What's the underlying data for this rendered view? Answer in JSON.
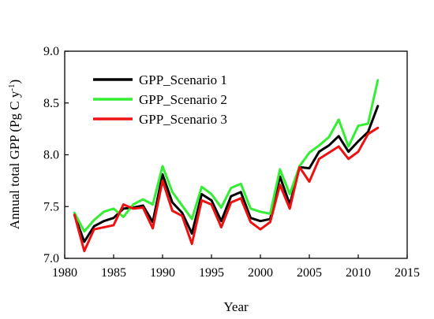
{
  "chart_data": {
    "type": "line",
    "xlabel": "Year",
    "ylabel": "Annual total GPP (Pg C y",
    "ylabel_sup": "-1",
    "ylabel_close": ")",
    "xlim": [
      1980,
      2015
    ],
    "ylim": [
      7.0,
      9.0
    ],
    "xticks": [
      1980,
      1985,
      1990,
      1995,
      2000,
      2005,
      2010,
      2015
    ],
    "xtick_labels": [
      "1980",
      "1985",
      "1990",
      "1995",
      "2000",
      "2005",
      "2010",
      "2015"
    ],
    "yticks": [
      7.0,
      7.5,
      8.0,
      8.5,
      9.0
    ],
    "ytick_labels": [
      "7.0",
      "7.5",
      "8.0",
      "8.5",
      "9.0"
    ],
    "grid": false,
    "legend_position": "top-left",
    "x": [
      1981,
      1982,
      1983,
      1984,
      1985,
      1986,
      1987,
      1988,
      1989,
      1990,
      1991,
      1992,
      1993,
      1994,
      1995,
      1996,
      1997,
      1998,
      1999,
      2000,
      2001,
      2002,
      2003,
      2004,
      2005,
      2006,
      2007,
      2008,
      2009,
      2010,
      2011,
      2012
    ],
    "series": [
      {
        "name": "GPP_Scenario 1",
        "color": "#000000",
        "values": [
          7.42,
          7.16,
          7.31,
          7.36,
          7.39,
          7.48,
          7.49,
          7.51,
          7.35,
          7.81,
          7.54,
          7.44,
          7.24,
          7.62,
          7.56,
          7.36,
          7.6,
          7.64,
          7.39,
          7.36,
          7.38,
          7.79,
          7.52,
          7.88,
          7.87,
          8.03,
          8.09,
          8.18,
          8.03,
          8.13,
          8.22,
          8.47
        ]
      },
      {
        "name": "GPP_Scenario 2",
        "color": "#33ee33",
        "values": [
          7.44,
          7.26,
          7.37,
          7.45,
          7.48,
          7.4,
          7.52,
          7.57,
          7.52,
          7.89,
          7.64,
          7.51,
          7.38,
          7.69,
          7.62,
          7.49,
          7.68,
          7.72,
          7.48,
          7.45,
          7.43,
          7.86,
          7.62,
          7.89,
          8.02,
          8.09,
          8.17,
          8.34,
          8.08,
          8.28,
          8.3,
          8.72
        ]
      },
      {
        "name": "GPP_Scenario 3",
        "color": "#ee1111",
        "values": [
          7.42,
          7.07,
          7.28,
          7.3,
          7.32,
          7.52,
          7.48,
          7.49,
          7.29,
          7.75,
          7.46,
          7.41,
          7.14,
          7.56,
          7.52,
          7.3,
          7.54,
          7.58,
          7.35,
          7.28,
          7.35,
          7.71,
          7.48,
          7.88,
          7.74,
          7.96,
          8.02,
          8.08,
          7.96,
          8.03,
          8.2,
          8.26
        ]
      }
    ]
  }
}
